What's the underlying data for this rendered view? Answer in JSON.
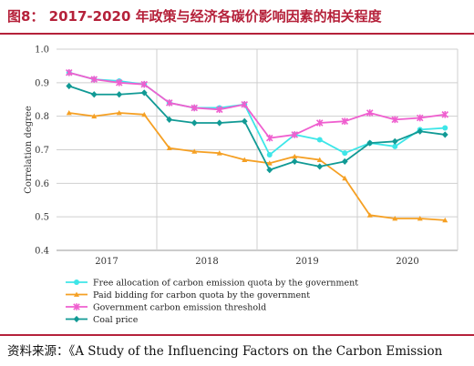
{
  "title": "图8： 2017-2020 年政策与经济各碳价影响因素的相关程度",
  "source": "资料来源：《A Study of the Influencing Factors on the Carbon Emission",
  "colors": {
    "brand": "#b5213a",
    "series": [
      "#3ee6e8",
      "#f5a024",
      "#ef5fcf",
      "#119a95"
    ]
  },
  "chart_data": {
    "type": "line",
    "ylabel": "Correlation degree",
    "ylim": [
      0.4,
      1.0
    ],
    "yticks": [
      "0.4",
      "0.5",
      "0.6",
      "0.7",
      "0.8",
      "0.9",
      "1.0"
    ],
    "x": [
      1,
      2,
      3,
      4,
      5,
      6,
      7,
      8,
      9,
      10,
      11,
      12,
      13,
      14,
      15,
      16
    ],
    "x_groups": [
      {
        "label": "2017",
        "center": 2.5
      },
      {
        "label": "2018",
        "center": 6.5
      },
      {
        "label": "2019",
        "center": 10.5
      },
      {
        "label": "2020",
        "center": 14.5
      }
    ],
    "x_group_dividers": [
      4.5,
      8.5,
      12.5
    ],
    "legend_position": "bottom",
    "grid": true,
    "series": [
      {
        "name": "Free allocation of carbon emission quota by the government",
        "marker": "circle",
        "values": [
          0.93,
          0.91,
          0.905,
          0.895,
          0.84,
          0.825,
          0.825,
          0.835,
          0.685,
          0.745,
          0.73,
          0.69,
          0.72,
          0.71,
          0.76,
          0.765
        ]
      },
      {
        "name": "Paid bidding for carbon quota by the government",
        "marker": "triangle",
        "values": [
          0.81,
          0.8,
          0.81,
          0.805,
          0.705,
          0.695,
          0.69,
          0.67,
          0.66,
          0.68,
          0.67,
          0.615,
          0.505,
          0.495,
          0.495,
          0.49
        ]
      },
      {
        "name": "Government carbon emission threshold",
        "marker": "star",
        "values": [
          0.93,
          0.91,
          0.9,
          0.895,
          0.84,
          0.825,
          0.82,
          0.835,
          0.735,
          0.745,
          0.78,
          0.785,
          0.81,
          0.79,
          0.795,
          0.805
        ]
      },
      {
        "name": "Coal price",
        "marker": "diamond",
        "values": [
          0.89,
          0.865,
          0.865,
          0.87,
          0.79,
          0.78,
          0.78,
          0.785,
          0.64,
          0.665,
          0.65,
          0.665,
          0.72,
          0.725,
          0.755,
          0.745
        ]
      }
    ]
  }
}
